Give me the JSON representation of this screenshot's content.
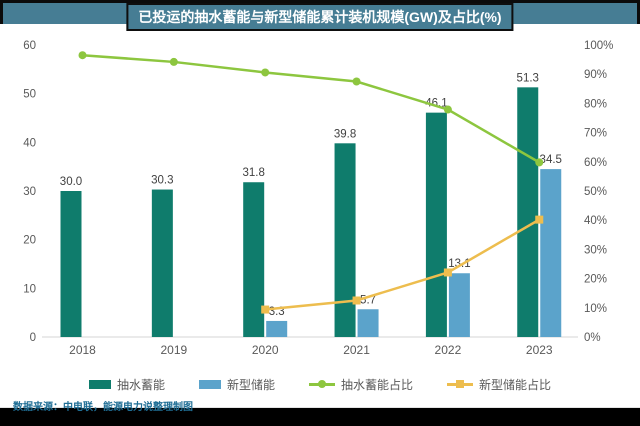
{
  "header": {
    "title": "已投运的抽水蓄能与新型储能累计装机规模(GW)及占比(%)"
  },
  "chart_data": {
    "type": "combo-bar-line",
    "title": "已投运的抽水蓄能与新型储能累计装机规模(GW)及占比(%)",
    "categories": [
      "2018",
      "2019",
      "2020",
      "2021",
      "2022",
      "2023"
    ],
    "series": [
      {
        "name": "抽水蓄能",
        "chart": "bar",
        "axis": "left",
        "color": "#0f7c6c",
        "values": [
          30.0,
          30.3,
          31.8,
          39.8,
          46.1,
          51.3
        ],
        "labels": [
          "30.0",
          "30.3",
          "31.8",
          "39.8",
          "46.1",
          "51.3"
        ]
      },
      {
        "name": "新型储能",
        "chart": "bar",
        "axis": "left",
        "color": "#5ba3cb",
        "values": [
          null,
          null,
          3.3,
          5.7,
          13.1,
          34.5
        ],
        "labels": [
          null,
          null,
          "3.3",
          "5.7",
          "13.1",
          "34.5"
        ]
      },
      {
        "name": "抽水蓄能占比",
        "chart": "line",
        "axis": "right",
        "marker": "circle",
        "color": "#8dc63f",
        "values": [
          96.5,
          94.2,
          90.6,
          87.5,
          77.9,
          59.8
        ]
      },
      {
        "name": "新型储能占比",
        "chart": "line",
        "axis": "right",
        "marker": "square",
        "color": "#edbd4e",
        "values": [
          null,
          null,
          9.4,
          12.5,
          22.1,
          40.2
        ]
      }
    ],
    "left_axis": {
      "min": 0,
      "max": 60,
      "step": 10,
      "ticks": [
        "0",
        "10",
        "20",
        "30",
        "40",
        "50",
        "60"
      ]
    },
    "right_axis": {
      "min": 0,
      "max": 100,
      "step": 10,
      "ticks": [
        "0%",
        "10%",
        "20%",
        "30%",
        "40%",
        "50%",
        "60%",
        "70%",
        "80%",
        "90%",
        "100%"
      ]
    },
    "grid": false,
    "legend_position": "bottom"
  },
  "legend": {
    "items": [
      {
        "label": "抽水蓄能",
        "swatch": "bar",
        "color": "#0f7c6c"
      },
      {
        "label": "新型储能",
        "swatch": "bar",
        "color": "#5ba3cb"
      },
      {
        "label": "抽水蓄能占比",
        "swatch": "line-circle",
        "color": "#8dc63f"
      },
      {
        "label": "新型储能占比",
        "swatch": "line-square",
        "color": "#edbd4e"
      }
    ]
  },
  "footer": {
    "source_note": "数据来源：中电联，能源电力说整理制图"
  },
  "colors": {
    "header_band": "#467d94",
    "title_box": "#467d94",
    "pumped_bar": "#0f7c6c",
    "new_bar": "#5ba3cb",
    "pumped_line": "#8dc63f",
    "new_line": "#edbd4e",
    "axis_text": "#595959",
    "label_text": "#404040",
    "baseline": "#d6d6d6",
    "footer_text": "#1f6e95",
    "bottom_band": "#000000"
  }
}
